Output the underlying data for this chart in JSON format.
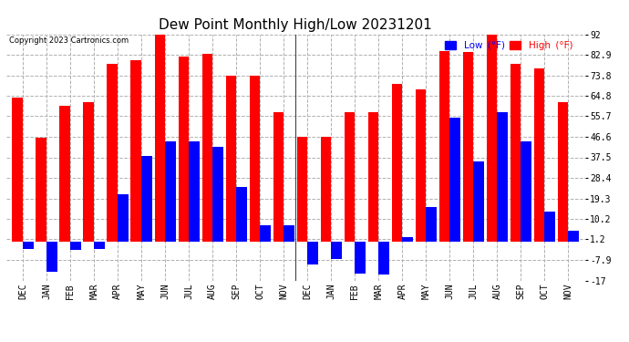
{
  "title": "Dew Point Monthly High/Low 20231201",
  "copyright": "Copyright 2023 Cartronics.com",
  "months": [
    "DEC",
    "JAN",
    "FEB",
    "MAR",
    "APR",
    "MAY",
    "JUN",
    "JUL",
    "AUG",
    "SEP",
    "OCT",
    "NOV",
    "DEC",
    "JAN",
    "FEB",
    "MAR",
    "APR",
    "MAY",
    "JUN",
    "JUL",
    "AUG",
    "SEP",
    "OCT",
    "NOV"
  ],
  "high": [
    64.0,
    46.0,
    60.5,
    62.0,
    79.0,
    80.5,
    92.0,
    82.0,
    83.5,
    73.5,
    73.5,
    57.5,
    46.6,
    46.6,
    57.5,
    57.5,
    70.0,
    67.5,
    84.5,
    84.0,
    92.0,
    79.0,
    77.0,
    62.0
  ],
  "low": [
    -3.0,
    -13.0,
    -3.5,
    -3.0,
    21.0,
    38.0,
    44.5,
    44.5,
    42.0,
    24.5,
    7.5,
    7.5,
    -10.0,
    -7.5,
    -14.0,
    -14.5,
    2.0,
    15.5,
    55.0,
    35.5,
    57.5,
    44.5,
    13.5,
    5.0
  ],
  "ylim": [
    -17.0,
    92.0
  ],
  "yticks": [
    -17.0,
    -7.9,
    1.2,
    10.2,
    19.3,
    28.4,
    37.5,
    46.6,
    55.7,
    64.8,
    73.8,
    82.9,
    92.0
  ],
  "bar_color_high": "#ff0000",
  "bar_color_low": "#0000ff",
  "bg_color": "#ffffff",
  "grid_color": "#b0b0b0",
  "title_fontsize": 11,
  "tick_fontsize": 7,
  "legend_low_color": "#0000ff",
  "legend_high_color": "#ff0000"
}
